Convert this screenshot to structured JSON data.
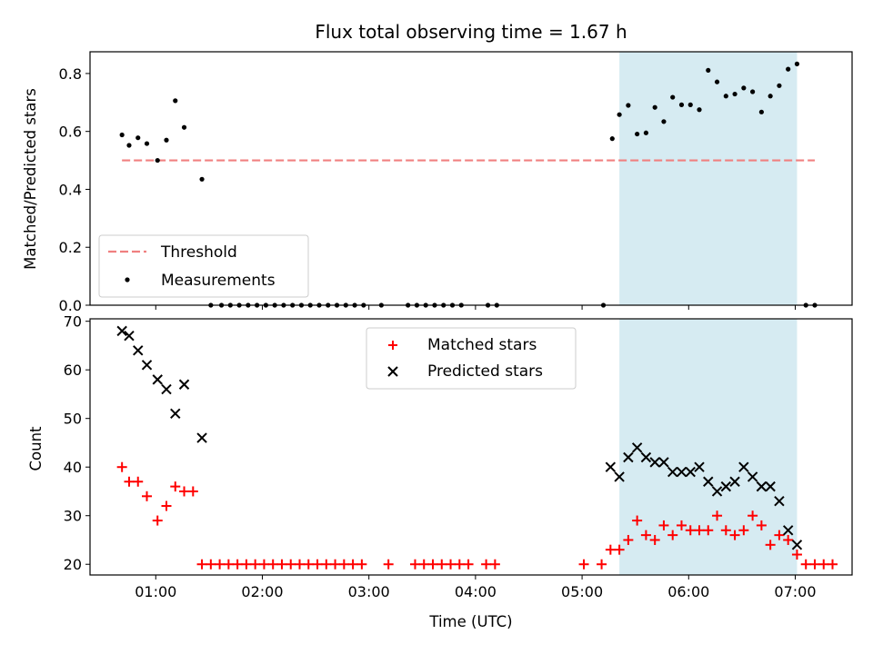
{
  "chart_data": [
    {
      "type": "scatter",
      "title": "Flux total observing time = 1.67 h",
      "ylabel": "Matched/Predicted stars",
      "xlim": [
        "00:23",
        "07:32"
      ],
      "ylim": [
        0,
        0.875
      ],
      "yticks": [
        0.0,
        0.2,
        0.4,
        0.6,
        0.8
      ],
      "ytick_labels": [
        "0.0",
        "0.2",
        "0.4",
        "0.6",
        "0.8"
      ],
      "legend": {
        "placement": "lower-left",
        "entries": [
          "Threshold",
          "Measurements"
        ]
      },
      "shaded_span": {
        "x": [
          "05:21",
          "07:01"
        ],
        "color": "#add8e6"
      },
      "threshold": {
        "name": "Threshold",
        "y": 0.5,
        "x": [
          "00:41",
          "07:11"
        ],
        "color": "#f08080"
      },
      "series": [
        {
          "name": "Measurements",
          "marker": "dot",
          "color": "#000000",
          "x": [
            "00:41",
            "00:45",
            "00:50",
            "00:55",
            "01:01",
            "01:06",
            "01:11",
            "01:16",
            "01:26",
            "01:31",
            "01:37",
            "01:42",
            "01:47",
            "01:52",
            "01:57",
            "02:02",
            "02:07",
            "02:12",
            "02:17",
            "02:22",
            "02:27",
            "02:32",
            "02:37",
            "02:42",
            "02:47",
            "02:52",
            "02:57",
            "03:07",
            "03:22",
            "03:27",
            "03:32",
            "03:37",
            "03:42",
            "03:47",
            "03:52",
            "04:07",
            "04:12",
            "05:12",
            "05:17",
            "05:21",
            "05:26",
            "05:31",
            "05:36",
            "05:41",
            "05:46",
            "05:51",
            "05:56",
            "06:01",
            "06:06",
            "06:11",
            "06:16",
            "06:21",
            "06:26",
            "06:31",
            "06:36",
            "06:41",
            "06:46",
            "06:51",
            "06:56",
            "07:01",
            "07:06",
            "07:11"
          ],
          "y": [
            0.588,
            0.552,
            0.578,
            0.558,
            0.5,
            0.57,
            0.706,
            0.614,
            0.435,
            0.0,
            0.0,
            0.0,
            0.0,
            0.0,
            0.0,
            0.0,
            0.0,
            0.0,
            0.0,
            0.0,
            0.0,
            0.0,
            0.0,
            0.0,
            0.0,
            0.0,
            0.0,
            0.0,
            0.0,
            0.0,
            0.0,
            0.0,
            0.0,
            0.0,
            0.0,
            0.0,
            0.0,
            0.0,
            0.575,
            0.658,
            0.69,
            0.591,
            0.595,
            0.683,
            0.634,
            0.718,
            0.692,
            0.692,
            0.675,
            0.811,
            0.771,
            0.722,
            0.729,
            0.75,
            0.737,
            0.667,
            0.722,
            0.758,
            0.815,
            0.833,
            0.0,
            0.0
          ]
        }
      ]
    },
    {
      "type": "scatter",
      "xlabel": "Time (UTC)",
      "ylabel": "Count",
      "xlim": [
        "00:23",
        "07:32"
      ],
      "ylim": [
        17.8,
        70.5
      ],
      "xticks": [
        "01:00",
        "02:00",
        "03:00",
        "04:00",
        "05:00",
        "06:00",
        "07:00"
      ],
      "xtick_labels": [
        "01:00",
        "02:00",
        "03:00",
        "04:00",
        "05:00",
        "06:00",
        "07:00"
      ],
      "yticks": [
        20,
        30,
        40,
        50,
        60,
        70
      ],
      "ytick_labels": [
        "20",
        "30",
        "40",
        "50",
        "60",
        "70"
      ],
      "legend": {
        "placement": "upper-center",
        "entries": [
          "Matched stars",
          "Predicted stars"
        ]
      },
      "shaded_span": {
        "x": [
          "05:21",
          "07:01"
        ],
        "color": "#add8e6"
      },
      "series": [
        {
          "name": "Matched stars",
          "marker": "plus",
          "color": "#ff0000",
          "x": [
            "00:41",
            "00:45",
            "00:50",
            "00:55",
            "01:01",
            "01:06",
            "01:11",
            "01:16",
            "01:21",
            "01:26",
            "01:31",
            "01:36",
            "01:41",
            "01:46",
            "01:51",
            "01:56",
            "02:01",
            "02:06",
            "02:11",
            "02:16",
            "02:21",
            "02:26",
            "02:31",
            "02:36",
            "02:41",
            "02:46",
            "02:51",
            "02:56",
            "03:11",
            "03:26",
            "03:31",
            "03:36",
            "03:41",
            "03:46",
            "03:51",
            "03:56",
            "04:06",
            "04:11",
            "05:01",
            "05:11",
            "05:16",
            "05:21",
            "05:26",
            "05:31",
            "05:36",
            "05:41",
            "05:46",
            "05:51",
            "05:56",
            "06:01",
            "06:06",
            "06:11",
            "06:16",
            "06:21",
            "06:26",
            "06:31",
            "06:36",
            "06:41",
            "06:46",
            "06:51",
            "06:56",
            "07:01",
            "07:06",
            "07:11",
            "07:16",
            "07:21"
          ],
          "y": [
            40,
            37,
            37,
            34,
            29,
            32,
            36,
            35,
            35,
            20,
            20,
            20,
            20,
            20,
            20,
            20,
            20,
            20,
            20,
            20,
            20,
            20,
            20,
            20,
            20,
            20,
            20,
            20,
            20,
            20,
            20,
            20,
            20,
            20,
            20,
            20,
            20,
            20,
            20,
            20,
            23,
            23,
            25,
            29,
            26,
            25,
            28,
            26,
            28,
            27,
            27,
            27,
            30,
            27,
            26,
            27,
            30,
            28,
            24,
            26,
            25,
            22,
            20,
            20,
            20,
            20
          ]
        },
        {
          "name": "Predicted stars",
          "marker": "x",
          "color": "#000000",
          "x": [
            "00:41",
            "00:45",
            "00:50",
            "00:55",
            "01:01",
            "01:06",
            "01:11",
            "01:16",
            "01:26",
            "05:16",
            "05:21",
            "05:26",
            "05:31",
            "05:36",
            "05:41",
            "05:46",
            "05:51",
            "05:56",
            "06:01",
            "06:06",
            "06:11",
            "06:16",
            "06:21",
            "06:26",
            "06:31",
            "06:36",
            "06:41",
            "06:46",
            "06:51",
            "06:56",
            "07:01"
          ],
          "y": [
            68,
            67,
            64,
            61,
            58,
            56,
            51,
            57,
            46,
            40,
            38,
            42,
            44,
            42,
            41,
            41,
            39,
            39,
            39,
            40,
            37,
            35,
            36,
            37,
            40,
            38,
            36,
            36,
            33,
            27,
            24
          ]
        }
      ]
    }
  ]
}
